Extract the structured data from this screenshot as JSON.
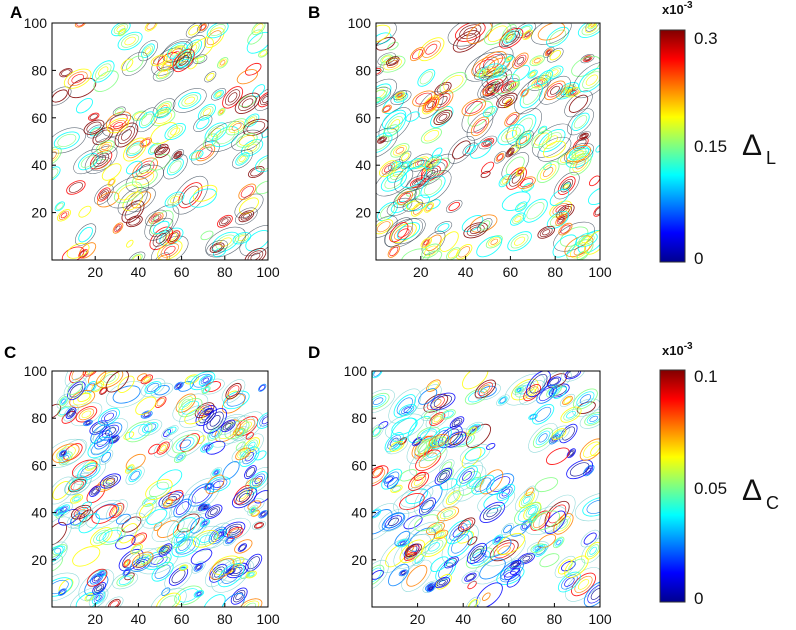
{
  "chart_data": [
    {
      "panel": "A",
      "type": "contour",
      "x_ticks": [
        "20",
        "40",
        "60",
        "80",
        "100"
      ],
      "y_ticks": [
        "20",
        "40",
        "60",
        "80",
        "100"
      ],
      "xlim": [
        0,
        100
      ],
      "ylim": [
        0,
        100
      ],
      "scale": "L",
      "seed": 11,
      "density": 0.55,
      "diagonal": false
    },
    {
      "panel": "B",
      "type": "contour",
      "x_ticks": [
        "20",
        "40",
        "60",
        "80",
        "100"
      ],
      "y_ticks": [
        "20",
        "40",
        "60",
        "80",
        "100"
      ],
      "xlim": [
        0,
        100
      ],
      "ylim": [
        0,
        100
      ],
      "scale": "L",
      "seed": 23,
      "density": 0.75,
      "diagonal": false
    },
    {
      "panel": "C",
      "type": "contour",
      "x_ticks": [
        "20",
        "40",
        "60",
        "80",
        "100"
      ],
      "y_ticks": [
        "20",
        "40",
        "60",
        "80",
        "100"
      ],
      "xlim": [
        0,
        100
      ],
      "ylim": [
        0,
        100
      ],
      "scale": "C",
      "seed": 37,
      "density": 0.85,
      "diagonal": false
    },
    {
      "panel": "D",
      "type": "contour",
      "x_ticks": [
        "20",
        "40",
        "60",
        "80",
        "100"
      ],
      "y_ticks": [
        "20",
        "40",
        "60",
        "80",
        "100"
      ],
      "xlim": [
        0,
        100
      ],
      "ylim": [
        0,
        100
      ],
      "scale": "C",
      "seed": 53,
      "density": 0.8,
      "diagonal": true
    }
  ],
  "colorbars": {
    "L": {
      "exponent": "x10",
      "exponent_power": "-3",
      "ticks": [
        "0.3",
        "0.15",
        "0"
      ],
      "range": [
        0,
        0.3
      ],
      "symbol": "Δ",
      "subscript": "L"
    },
    "C": {
      "exponent": "x10",
      "exponent_power": "-3",
      "ticks": [
        "0.1",
        "0.05",
        "0"
      ],
      "range": [
        0,
        0.1
      ],
      "symbol": "Δ",
      "subscript": "C"
    }
  },
  "colormap": [
    "#00008f",
    "#0000ff",
    "#0080ff",
    "#00ffff",
    "#80ff80",
    "#ffff00",
    "#ff8000",
    "#ff0000",
    "#800000"
  ]
}
